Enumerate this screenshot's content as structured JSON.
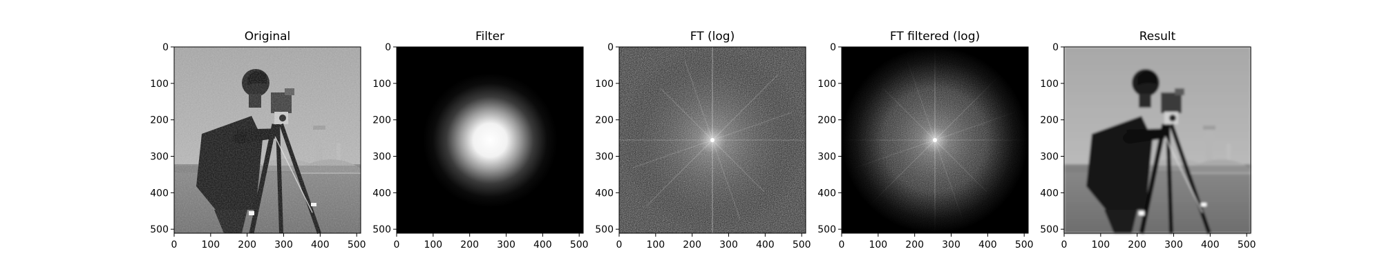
{
  "chart_data": [
    {
      "type": "image",
      "title": "Original",
      "xlim": [
        0,
        511
      ],
      "ylim": [
        511,
        0
      ],
      "x_ticks": [
        "0",
        "100",
        "200",
        "300",
        "400",
        "500"
      ],
      "y_ticks": [
        "0",
        "100",
        "200",
        "300",
        "400",
        "500"
      ],
      "content": "grayscale photograph"
    },
    {
      "type": "image",
      "title": "Filter",
      "xlim": [
        0,
        511
      ],
      "ylim": [
        511,
        0
      ],
      "x_ticks": [
        "0",
        "100",
        "200",
        "300",
        "400",
        "500"
      ],
      "y_ticks": [
        "0",
        "100",
        "200",
        "300",
        "400",
        "500"
      ],
      "content": "gaussian low-pass mask",
      "center": [
        256,
        256
      ]
    },
    {
      "type": "image",
      "title": "FT (log)",
      "xlim": [
        0,
        511
      ],
      "ylim": [
        511,
        0
      ],
      "x_ticks": [
        "0",
        "100",
        "200",
        "300",
        "400",
        "500"
      ],
      "y_ticks": [
        "0",
        "100",
        "200",
        "300",
        "400",
        "500"
      ],
      "content": "log magnitude spectrum",
      "center": [
        256,
        256
      ]
    },
    {
      "type": "image",
      "title": "FT filtered (log)",
      "xlim": [
        0,
        511
      ],
      "ylim": [
        511,
        0
      ],
      "x_ticks": [
        "0",
        "100",
        "200",
        "300",
        "400",
        "500"
      ],
      "y_ticks": [
        "0",
        "100",
        "200",
        "300",
        "400",
        "500"
      ],
      "content": "filtered log magnitude spectrum",
      "center": [
        256,
        256
      ]
    },
    {
      "type": "image",
      "title": "Result",
      "xlim": [
        0,
        511
      ],
      "ylim": [
        511,
        0
      ],
      "x_ticks": [
        "0",
        "100",
        "200",
        "300",
        "400",
        "500"
      ],
      "y_ticks": [
        "0",
        "100",
        "200",
        "300",
        "400",
        "500"
      ],
      "content": "low-pass filtered photograph"
    }
  ],
  "colors": {
    "background": "#ffffff",
    "axis": "#000000",
    "colormap": "gray"
  }
}
